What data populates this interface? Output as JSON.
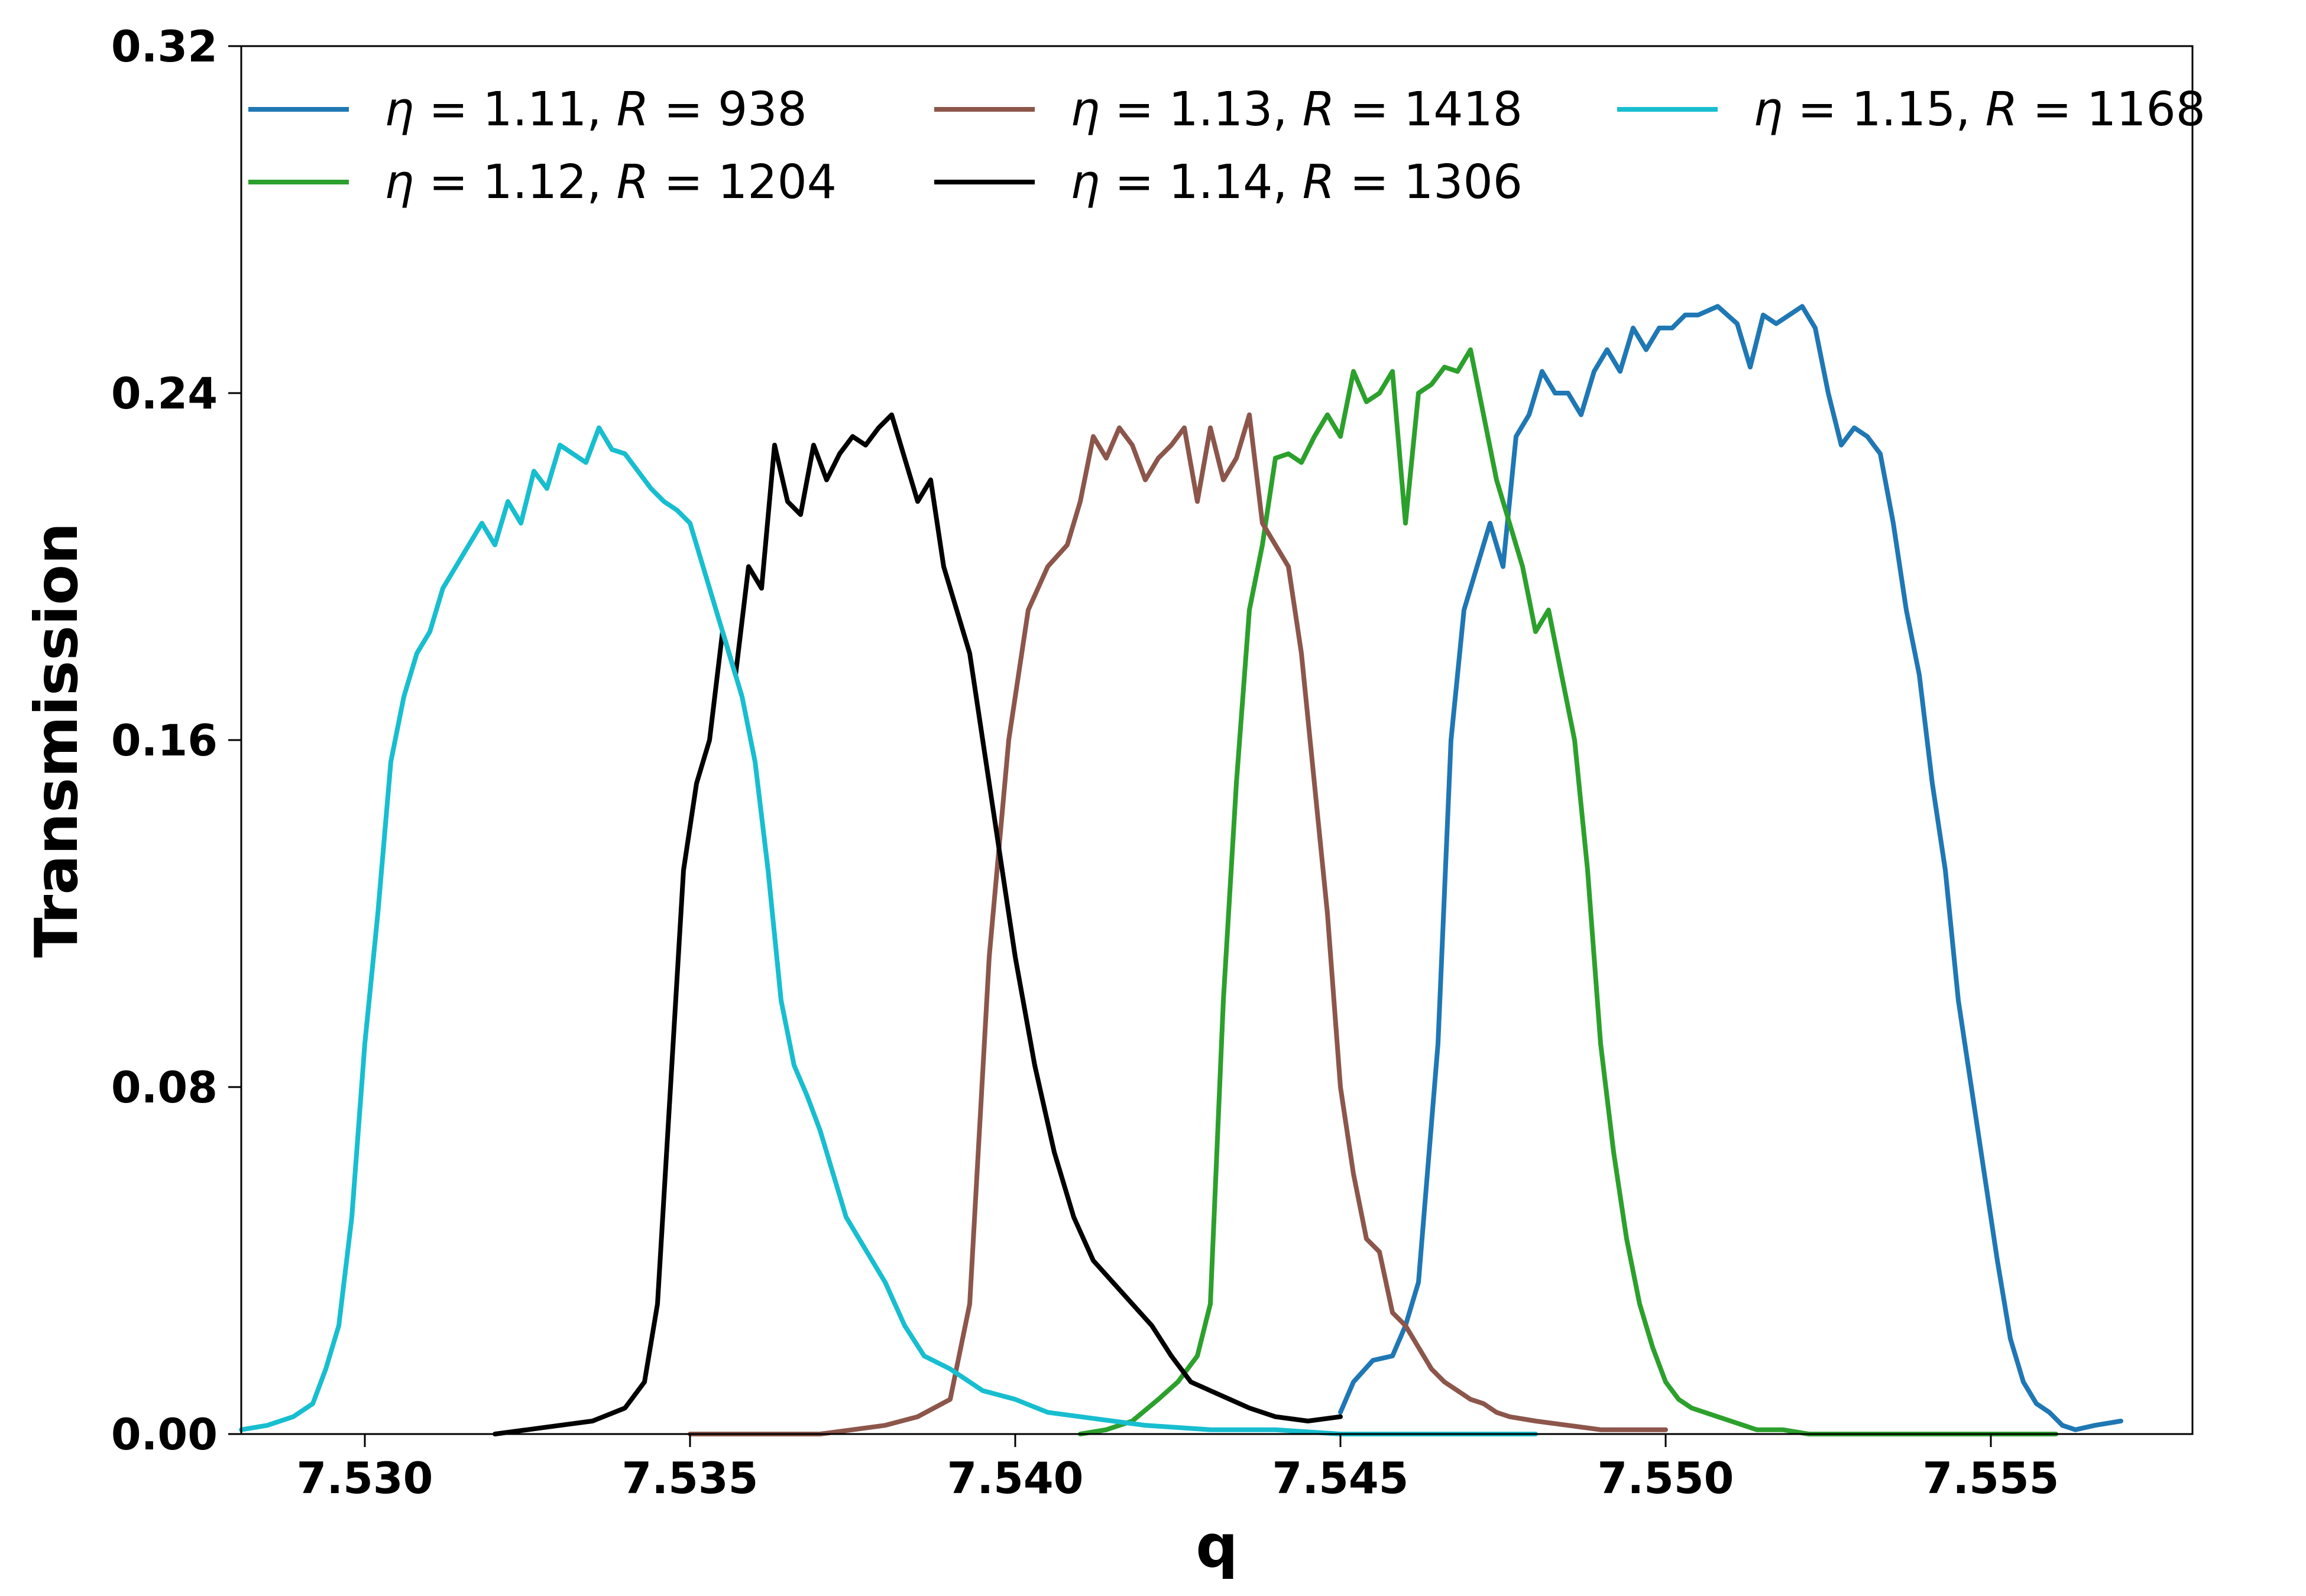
{
  "chart_data": {
    "type": "line",
    "title": "",
    "xlabel": "q",
    "ylabel": "Transmission",
    "xlim": [
      7.5281,
      7.5581
    ],
    "ylim": [
      0,
      0.32
    ],
    "xticks": [
      7.53,
      7.535,
      7.54,
      7.545,
      7.55,
      7.555
    ],
    "xtick_labels": [
      "7.530",
      "7.535",
      "7.540",
      "7.545",
      "7.550",
      "7.555"
    ],
    "yticks": [
      0,
      0.08,
      0.16,
      0.24,
      0.32
    ],
    "ytick_labels": [
      "0.00",
      "0.08",
      "0.16",
      "0.24",
      "0.32"
    ],
    "grid": false,
    "legend_position": "top",
    "legend_columns": 3,
    "series": [
      {
        "name": "η = 1.11,  R = 938",
        "eta": "1.11",
        "R": "938",
        "color": "#1f77b4",
        "x": [
          7.545,
          7.5452,
          7.5455,
          7.5458,
          7.546,
          7.5462,
          7.5465,
          7.5467,
          7.5469,
          7.5471,
          7.5473,
          7.5475,
          7.5477,
          7.5479,
          7.5481,
          7.5483,
          7.5485,
          7.5487,
          7.5489,
          7.5491,
          7.5493,
          7.5495,
          7.5497,
          7.5499,
          7.5501,
          7.5503,
          7.5505,
          7.5508,
          7.5511,
          7.5513,
          7.5515,
          7.5517,
          7.5519,
          7.5521,
          7.5523,
          7.5525,
          7.5527,
          7.5529,
          7.5531,
          7.5533,
          7.5535,
          7.5537,
          7.5539,
          7.5541,
          7.5543,
          7.5545,
          7.5547,
          7.5549,
          7.5551,
          7.5553,
          7.5555,
          7.5557,
          7.5559,
          7.5561,
          7.5563,
          7.5566,
          7.557
        ],
        "y": [
          0.005,
          0.012,
          0.017,
          0.018,
          0.025,
          0.035,
          0.09,
          0.16,
          0.19,
          0.2,
          0.21,
          0.2,
          0.23,
          0.235,
          0.245,
          0.24,
          0.24,
          0.235,
          0.245,
          0.25,
          0.245,
          0.255,
          0.25,
          0.255,
          0.255,
          0.258,
          0.258,
          0.26,
          0.256,
          0.246,
          0.258,
          0.256,
          0.258,
          0.26,
          0.255,
          0.24,
          0.228,
          0.232,
          0.23,
          0.226,
          0.21,
          0.19,
          0.175,
          0.15,
          0.13,
          0.1,
          0.08,
          0.06,
          0.04,
          0.022,
          0.012,
          0.007,
          0.005,
          0.002,
          0.001,
          0.002,
          0.003
        ]
      },
      {
        "name": "η = 1.12,  R = 1204",
        "eta": "1.12",
        "R": "1204",
        "color": "#2ca02c",
        "x": [
          7.541,
          7.5414,
          7.5418,
          7.5422,
          7.5425,
          7.5428,
          7.543,
          7.5432,
          7.5434,
          7.5436,
          7.5438,
          7.544,
          7.5442,
          7.5444,
          7.5446,
          7.5448,
          7.545,
          7.5452,
          7.5454,
          7.5456,
          7.5458,
          7.546,
          7.5462,
          7.5464,
          7.5466,
          7.5468,
          7.547,
          7.5472,
          7.5474,
          7.5476,
          7.5478,
          7.548,
          7.5482,
          7.5484,
          7.5486,
          7.5488,
          7.549,
          7.5492,
          7.5494,
          7.5496,
          7.5498,
          7.55,
          7.5502,
          7.5504,
          7.5506,
          7.5508,
          7.551,
          7.5512,
          7.5514,
          7.5518,
          7.5522,
          7.5526,
          7.553,
          7.5535,
          7.554,
          7.555,
          7.556
        ],
        "y": [
          0.0,
          0.001,
          0.003,
          0.008,
          0.012,
          0.018,
          0.03,
          0.1,
          0.15,
          0.19,
          0.205,
          0.225,
          0.226,
          0.224,
          0.23,
          0.235,
          0.23,
          0.245,
          0.238,
          0.24,
          0.245,
          0.21,
          0.24,
          0.242,
          0.246,
          0.245,
          0.25,
          0.235,
          0.22,
          0.21,
          0.2,
          0.185,
          0.19,
          0.175,
          0.16,
          0.13,
          0.09,
          0.065,
          0.045,
          0.03,
          0.02,
          0.012,
          0.008,
          0.006,
          0.005,
          0.004,
          0.003,
          0.002,
          0.001,
          0.001,
          0.0,
          0.0,
          0.0,
          0.0,
          0.0,
          0.0,
          0.0
        ]
      },
      {
        "name": "η = 1.13,  R = 1418",
        "eta": "1.13",
        "R": "1418",
        "color": "#8c564b",
        "x": [
          7.535,
          7.536,
          7.537,
          7.5375,
          7.538,
          7.5385,
          7.539,
          7.5393,
          7.5396,
          7.5399,
          7.5402,
          7.5405,
          7.5408,
          7.541,
          7.5412,
          7.5414,
          7.5416,
          7.5418,
          7.542,
          7.5422,
          7.5424,
          7.5426,
          7.5428,
          7.543,
          7.5432,
          7.5434,
          7.5436,
          7.5438,
          7.544,
          7.5442,
          7.5444,
          7.5446,
          7.5448,
          7.545,
          7.5452,
          7.5454,
          7.5456,
          7.5458,
          7.546,
          7.5462,
          7.5464,
          7.5466,
          7.5468,
          7.547,
          7.5472,
          7.5474,
          7.5476,
          7.548,
          7.5485,
          7.549,
          7.5495,
          7.55
        ],
        "y": [
          0.0,
          0.0,
          0.0,
          0.001,
          0.002,
          0.004,
          0.008,
          0.03,
          0.11,
          0.16,
          0.19,
          0.2,
          0.205,
          0.215,
          0.23,
          0.225,
          0.232,
          0.228,
          0.22,
          0.225,
          0.228,
          0.232,
          0.215,
          0.232,
          0.22,
          0.225,
          0.235,
          0.21,
          0.205,
          0.2,
          0.18,
          0.15,
          0.12,
          0.08,
          0.06,
          0.045,
          0.042,
          0.028,
          0.025,
          0.02,
          0.015,
          0.012,
          0.01,
          0.008,
          0.007,
          0.005,
          0.004,
          0.003,
          0.002,
          0.001,
          0.001,
          0.001
        ]
      },
      {
        "name": "η = 1.14,  R = 1306",
        "eta": "1.14",
        "R": "1306",
        "color": "#000000",
        "x": [
          7.532,
          7.5325,
          7.533,
          7.5335,
          7.534,
          7.5343,
          7.5345,
          7.5347,
          7.5349,
          7.5351,
          7.5353,
          7.5355,
          7.5357,
          7.5359,
          7.5361,
          7.5363,
          7.5365,
          7.5367,
          7.5369,
          7.5371,
          7.5373,
          7.5375,
          7.5377,
          7.5379,
          7.5381,
          7.5383,
          7.5385,
          7.5387,
          7.5389,
          7.5391,
          7.5393,
          7.5395,
          7.5397,
          7.54,
          7.5403,
          7.5406,
          7.5409,
          7.5412,
          7.5415,
          7.5418,
          7.5421,
          7.5424,
          7.5427,
          7.543,
          7.5433,
          7.5436,
          7.544,
          7.5445,
          7.545
        ],
        "y": [
          0.0,
          0.001,
          0.002,
          0.003,
          0.006,
          0.012,
          0.03,
          0.08,
          0.13,
          0.15,
          0.16,
          0.185,
          0.175,
          0.2,
          0.195,
          0.228,
          0.215,
          0.212,
          0.228,
          0.22,
          0.226,
          0.23,
          0.228,
          0.232,
          0.235,
          0.225,
          0.215,
          0.22,
          0.2,
          0.19,
          0.18,
          0.16,
          0.14,
          0.11,
          0.085,
          0.065,
          0.05,
          0.04,
          0.035,
          0.03,
          0.025,
          0.018,
          0.012,
          0.01,
          0.008,
          0.006,
          0.004,
          0.003,
          0.004
        ]
      },
      {
        "name": "η = 1.15,  R = 1168",
        "eta": "1.15",
        "R": "1168",
        "color": "#17becf",
        "x": [
          7.5281,
          7.5285,
          7.5289,
          7.5292,
          7.5294,
          7.5296,
          7.5298,
          7.53,
          7.5302,
          7.5304,
          7.5306,
          7.5308,
          7.531,
          7.5312,
          7.5314,
          7.5316,
          7.5318,
          7.532,
          7.5322,
          7.5324,
          7.5326,
          7.5328,
          7.533,
          7.5332,
          7.5334,
          7.5336,
          7.5338,
          7.534,
          7.5342,
          7.5344,
          7.5346,
          7.5348,
          7.535,
          7.5352,
          7.5354,
          7.5356,
          7.5358,
          7.536,
          7.5362,
          7.5364,
          7.5366,
          7.5368,
          7.537,
          7.5372,
          7.5374,
          7.5376,
          7.5378,
          7.538,
          7.5383,
          7.5386,
          7.539,
          7.5395,
          7.54,
          7.5405,
          7.541,
          7.542,
          7.543,
          7.544,
          7.545,
          7.546,
          7.548
        ],
        "y": [
          0.001,
          0.002,
          0.004,
          0.007,
          0.015,
          0.025,
          0.05,
          0.09,
          0.12,
          0.155,
          0.17,
          0.18,
          0.185,
          0.195,
          0.2,
          0.205,
          0.21,
          0.205,
          0.215,
          0.21,
          0.222,
          0.218,
          0.228,
          0.226,
          0.224,
          0.232,
          0.227,
          0.226,
          0.222,
          0.218,
          0.215,
          0.213,
          0.21,
          0.2,
          0.19,
          0.18,
          0.17,
          0.155,
          0.13,
          0.1,
          0.085,
          0.078,
          0.07,
          0.06,
          0.05,
          0.045,
          0.04,
          0.035,
          0.025,
          0.018,
          0.015,
          0.01,
          0.008,
          0.005,
          0.004,
          0.002,
          0.001,
          0.001,
          0.0,
          0.0,
          0.0
        ]
      }
    ]
  }
}
